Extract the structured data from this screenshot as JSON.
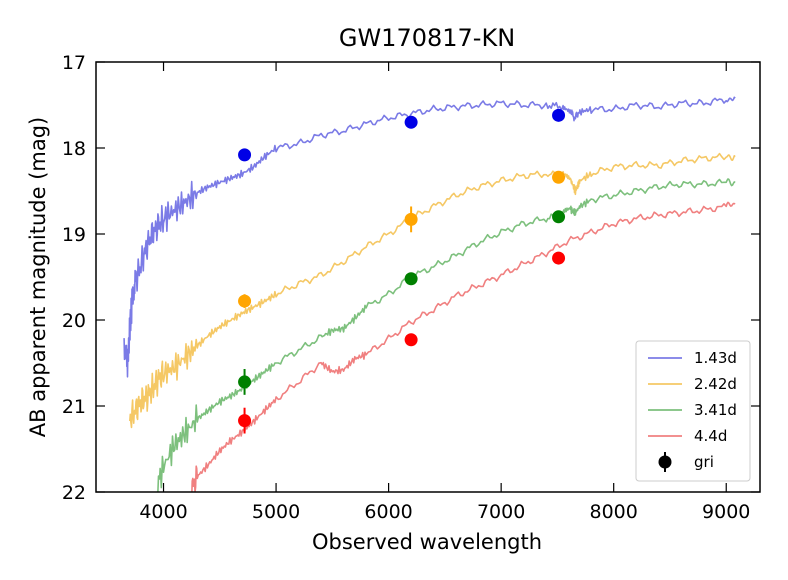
{
  "chart_data": {
    "type": "line",
    "title": "GW170817-KN",
    "xlabel": "Observed wavelength",
    "ylabel": "AB apparent magnitude (mag)",
    "xlim": [
      3400,
      9300
    ],
    "ylim": [
      22,
      17
    ],
    "y_inverted": true,
    "grid": false,
    "legend_position": "lower-right",
    "x_ticks": [
      4000,
      5000,
      6000,
      7000,
      8000,
      9000
    ],
    "y_ticks": [
      17,
      18,
      19,
      20,
      21,
      22
    ],
    "x_tick_labels": [
      "4000",
      "5000",
      "6000",
      "7000",
      "8000",
      "9000"
    ],
    "y_tick_labels": [
      "17",
      "18",
      "19",
      "20",
      "21",
      "22"
    ],
    "series": [
      {
        "name": "1.43d",
        "color": "#7b7be6",
        "x": [
          3650,
          3680,
          3700,
          3720,
          3750,
          3800,
          3850,
          3900,
          3950,
          4000,
          4100,
          4200,
          4300,
          4400,
          4500,
          4600,
          4700,
          4800,
          4900,
          5000,
          5200,
          5400,
          5600,
          5800,
          6000,
          6200,
          6400,
          6600,
          6800,
          7000,
          7200,
          7400,
          7550,
          7620,
          7650,
          7700,
          7800,
          8000,
          8200,
          8400,
          8600,
          8800,
          9000,
          9080
        ],
        "y": [
          20.25,
          20.55,
          20.1,
          19.8,
          19.55,
          19.35,
          19.15,
          19.0,
          18.9,
          18.82,
          18.72,
          18.62,
          18.52,
          18.45,
          18.4,
          18.35,
          18.3,
          18.22,
          18.1,
          18.0,
          17.95,
          17.85,
          17.8,
          17.72,
          17.65,
          17.6,
          17.55,
          17.52,
          17.5,
          17.48,
          17.5,
          17.5,
          17.52,
          17.58,
          17.65,
          17.58,
          17.55,
          17.55,
          17.5,
          17.52,
          17.48,
          17.48,
          17.43,
          17.42
        ]
      },
      {
        "name": "2.42d",
        "color": "#f5c865",
        "x": [
          3700,
          3750,
          3800,
          3850,
          3900,
          3950,
          4000,
          4100,
          4200,
          4300,
          4400,
          4500,
          4600,
          4700,
          4800,
          4900,
          5000,
          5200,
          5400,
          5600,
          5800,
          6000,
          6200,
          6400,
          6600,
          6800,
          7000,
          7200,
          7400,
          7550,
          7620,
          7660,
          7700,
          7800,
          8000,
          8200,
          8400,
          8600,
          8800,
          9000,
          9080
        ],
        "y": [
          21.15,
          21.05,
          20.95,
          20.9,
          20.8,
          20.7,
          20.62,
          20.55,
          20.42,
          20.3,
          20.18,
          20.08,
          20.0,
          19.92,
          19.85,
          19.78,
          19.7,
          19.58,
          19.48,
          19.32,
          19.15,
          19.0,
          18.82,
          18.68,
          18.55,
          18.45,
          18.38,
          18.32,
          18.3,
          18.3,
          18.38,
          18.5,
          18.38,
          18.3,
          18.22,
          18.2,
          18.2,
          18.15,
          18.12,
          18.1,
          18.1
        ]
      },
      {
        "name": "3.41d",
        "color": "#7dc07d",
        "x": [
          3950,
          4000,
          4100,
          4200,
          4300,
          4400,
          4500,
          4600,
          4700,
          4800,
          4900,
          5000,
          5200,
          5400,
          5500,
          5600,
          5700,
          5800,
          6000,
          6200,
          6400,
          6600,
          6800,
          7000,
          7200,
          7400,
          7550,
          7620,
          7660,
          7700,
          7800,
          8000,
          8200,
          8400,
          8600,
          8800,
          9000,
          9080
        ],
        "y": [
          21.9,
          21.7,
          21.45,
          21.3,
          21.15,
          21.05,
          20.95,
          20.88,
          20.8,
          20.7,
          20.6,
          20.5,
          20.35,
          20.2,
          20.12,
          20.1,
          19.98,
          19.85,
          19.7,
          19.5,
          19.38,
          19.25,
          19.1,
          18.98,
          18.88,
          18.82,
          18.76,
          18.72,
          18.75,
          18.68,
          18.6,
          18.55,
          18.5,
          18.45,
          18.42,
          18.42,
          18.4,
          18.4
        ]
      },
      {
        "name": "4.4d",
        "color": "#f08080",
        "x": [
          4250,
          4300,
          4400,
          4500,
          4600,
          4700,
          4800,
          4900,
          5000,
          5200,
          5400,
          5500,
          5600,
          5700,
          5800,
          6000,
          6200,
          6400,
          6600,
          6800,
          7000,
          7200,
          7400,
          7600,
          7800,
          8000,
          8200,
          8400,
          8600,
          8800,
          9000,
          9080
        ],
        "y": [
          21.95,
          21.82,
          21.68,
          21.52,
          21.4,
          21.3,
          21.18,
          21.05,
          20.92,
          20.72,
          20.5,
          20.6,
          20.58,
          20.45,
          20.4,
          20.22,
          20.02,
          19.88,
          19.72,
          19.6,
          19.48,
          19.35,
          19.22,
          19.08,
          18.98,
          18.88,
          18.82,
          18.78,
          18.75,
          18.72,
          18.68,
          18.65
        ]
      }
    ],
    "points": {
      "name": "gri",
      "legend_color": "#000000",
      "groups": [
        {
          "color": "#0000e6",
          "x": [
            4720,
            6200,
            7510
          ],
          "y": [
            18.08,
            17.7,
            17.62
          ],
          "err": [
            0.04,
            0.04,
            0.04
          ]
        },
        {
          "color": "#ffa500",
          "x": [
            4720,
            6200,
            7510
          ],
          "y": [
            19.78,
            18.83,
            18.34
          ],
          "err": [
            0.08,
            0.15,
            0.06
          ]
        },
        {
          "color": "#008000",
          "x": [
            4720,
            6200,
            7510
          ],
          "y": [
            20.72,
            19.52,
            18.8
          ],
          "err": [
            0.15,
            0.06,
            0.05
          ]
        },
        {
          "color": "#ff0000",
          "x": [
            4720,
            6200,
            7510
          ],
          "y": [
            21.17,
            20.23,
            19.28
          ],
          "err": [
            0.15,
            0.06,
            0.05
          ]
        }
      ]
    }
  }
}
